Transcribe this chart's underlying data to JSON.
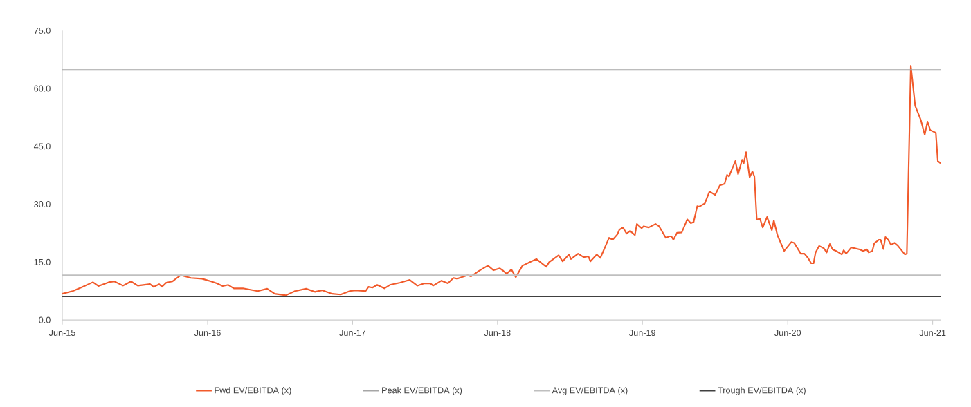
{
  "chart_data": {
    "type": "line",
    "x": [
      "2015-06-01",
      "2015-06-27",
      "2015-07-18",
      "2015-08-17",
      "2015-08-31",
      "2015-09-26",
      "2015-10-10",
      "2015-11-01",
      "2015-11-21",
      "2015-12-08",
      "2016-01-08",
      "2016-01-17",
      "2016-01-31",
      "2016-02-07",
      "2016-02-18",
      "2016-03-04",
      "2016-03-25",
      "2016-04-20",
      "2016-05-18",
      "2016-06-10",
      "2016-06-24",
      "2016-07-09",
      "2016-07-23",
      "2016-08-06",
      "2016-08-29",
      "2016-10-05",
      "2016-10-29",
      "2016-11-17",
      "2016-12-15",
      "2017-01-07",
      "2017-02-04",
      "2017-02-26",
      "2017-03-16",
      "2017-04-11",
      "2017-05-02",
      "2017-05-25",
      "2017-06-07",
      "2017-07-04",
      "2017-07-11",
      "2017-07-21",
      "2017-08-02",
      "2017-08-20",
      "2017-09-03",
      "2017-09-29",
      "2017-10-23",
      "2017-11-11",
      "2017-11-29",
      "2017-12-14",
      "2017-12-21",
      "2018-01-11",
      "2018-01-27",
      "2018-02-10",
      "2018-02-20",
      "2018-03-18",
      "2018-03-26",
      "2018-04-15",
      "2018-05-08",
      "2018-05-22",
      "2018-06-07",
      "2018-06-16",
      "2018-06-24",
      "2018-07-06",
      "2018-07-17",
      "2018-08-03",
      "2018-09-07",
      "2018-10-02",
      "2018-10-09",
      "2018-11-02",
      "2018-11-12",
      "2018-11-28",
      "2018-12-03",
      "2018-12-21",
      "2019-01-04",
      "2019-01-16",
      "2019-01-21",
      "2019-02-06",
      "2019-02-15",
      "2019-03-09",
      "2019-03-18",
      "2019-03-30",
      "2019-04-04",
      "2019-04-13",
      "2019-04-22",
      "2019-05-01",
      "2019-05-13",
      "2019-05-18",
      "2019-05-30",
      "2019-06-04",
      "2019-06-17",
      "2019-07-04",
      "2019-07-13",
      "2019-07-30",
      "2019-08-08",
      "2019-08-13",
      "2019-08-18",
      "2019-08-27",
      "2019-09-08",
      "2019-09-22",
      "2019-10-01",
      "2019-10-08",
      "2019-10-17",
      "2019-10-22",
      "2019-11-05",
      "2019-11-17",
      "2019-12-01",
      "2019-12-13",
      "2019-12-25",
      "2019-12-31",
      "2020-01-05",
      "2020-01-21",
      "2020-01-28",
      "2020-02-07",
      "2020-02-11",
      "2020-02-17",
      "2020-02-26",
      "2020-03-04",
      "2020-03-09",
      "2020-03-15",
      "2020-03-23",
      "2020-03-30",
      "2020-04-10",
      "2020-04-22",
      "2020-04-27",
      "2020-05-06",
      "2020-05-23",
      "2020-06-10",
      "2020-06-17",
      "2020-07-04",
      "2020-07-13",
      "2020-07-22",
      "2020-07-30",
      "2020-08-05",
      "2020-08-10",
      "2020-08-19",
      "2020-08-31",
      "2020-09-07",
      "2020-09-15",
      "2020-09-22",
      "2020-10-01",
      "2020-10-15",
      "2020-10-20",
      "2020-10-26",
      "2020-11-08",
      "2020-11-29",
      "2020-12-08",
      "2020-12-17",
      "2020-12-22",
      "2020-12-31",
      "2021-01-05",
      "2021-01-17",
      "2021-01-21",
      "2021-01-28",
      "2021-02-02",
      "2021-02-09",
      "2021-02-16",
      "2021-02-25",
      "2021-03-05",
      "2021-03-23",
      "2021-03-28",
      "2021-04-07",
      "2021-04-18",
      "2021-05-02",
      "2021-05-12",
      "2021-05-19",
      "2021-05-26",
      "2021-06-09",
      "2021-06-14",
      "2021-06-21"
    ],
    "series": [
      {
        "name": "Fwd EV/EBITDA (x)",
        "color": "#f15a2b",
        "values": [
          6.8,
          7.5,
          8.4,
          9.8,
          8.8,
          9.8,
          10.0,
          8.9,
          10.0,
          8.9,
          9.3,
          8.6,
          9.3,
          8.6,
          9.7,
          10.0,
          11.6,
          10.9,
          10.7,
          10.0,
          9.5,
          8.8,
          9.1,
          8.2,
          8.2,
          7.5,
          8.1,
          6.8,
          6.4,
          7.5,
          8.1,
          7.3,
          7.7,
          6.8,
          6.6,
          7.5,
          7.7,
          7.5,
          8.6,
          8.4,
          9.1,
          8.2,
          9.1,
          9.7,
          10.4,
          8.9,
          9.5,
          9.5,
          8.9,
          10.2,
          9.5,
          10.9,
          10.7,
          11.6,
          11.3,
          12.7,
          14.1,
          12.9,
          13.4,
          12.7,
          12.0,
          13.1,
          11.1,
          14.1,
          15.8,
          13.8,
          15.0,
          16.8,
          15.2,
          17.0,
          15.8,
          17.2,
          16.3,
          16.5,
          15.2,
          17.0,
          16.1,
          21.3,
          20.8,
          22.2,
          23.4,
          24.0,
          22.4,
          23.1,
          22.0,
          24.9,
          23.8,
          24.3,
          24.0,
          24.9,
          24.3,
          21.3,
          21.7,
          21.7,
          20.8,
          22.6,
          22.7,
          26.1,
          25.1,
          25.4,
          29.5,
          29.4,
          30.2,
          33.3,
          32.4,
          34.9,
          35.3,
          37.6,
          37.2,
          41.2,
          37.8,
          41.5,
          40.6,
          43.5,
          37.0,
          38.5,
          37.2,
          26.0,
          26.3,
          24.0,
          26.7,
          23.3,
          25.8,
          22.0,
          17.9,
          20.2,
          20.0,
          17.2,
          17.2,
          16.1,
          14.7,
          14.7,
          17.5,
          19.2,
          18.6,
          17.5,
          19.7,
          18.3,
          17.9,
          17.0,
          18.1,
          17.2,
          18.8,
          18.3,
          17.9,
          18.3,
          17.5,
          17.9,
          19.9,
          20.8,
          20.8,
          18.4,
          21.5,
          20.8,
          19.5,
          20.0,
          19.3,
          17.0,
          17.2,
          65.9,
          55.5,
          51.9,
          48.0,
          51.4,
          49.2,
          48.5,
          41.2,
          40.6
        ]
      }
    ],
    "ref_lines": [
      {
        "axis": "y",
        "value": 64.8,
        "label": "Peak EV/EBITDA (x)",
        "color": "#a6a6a6"
      },
      {
        "axis": "y",
        "value": 11.6,
        "label": "Avg EV/EBITDA (x)",
        "color": "#bfbfbf"
      },
      {
        "axis": "y",
        "value": 6.1,
        "label": "Trough EV/EBITDA (x)",
        "color": "#404040"
      }
    ],
    "xlim": [
      "2015-06-01",
      "2021-06-22"
    ],
    "xticks": [
      {
        "value": "2015-06-01",
        "label": "Jun-15"
      },
      {
        "value": "2016-06-01",
        "label": "Jun-16"
      },
      {
        "value": "2017-06-01",
        "label": "Jun-17"
      },
      {
        "value": "2018-06-01",
        "label": "Jun-18"
      },
      {
        "value": "2019-06-01",
        "label": "Jun-19"
      },
      {
        "value": "2020-06-01",
        "label": "Jun-20"
      },
      {
        "value": "2021-06-01",
        "label": "Jun-21"
      }
    ],
    "ylim": [
      0,
      75
    ],
    "yticks": [
      {
        "value": 0,
        "label": "0.0"
      },
      {
        "value": 15,
        "label": "15.0"
      },
      {
        "value": 30,
        "label": "30.0"
      },
      {
        "value": 45,
        "label": "45.0"
      },
      {
        "value": 60,
        "label": "60.0"
      },
      {
        "value": 75,
        "label": "75.0"
      }
    ],
    "legend": "bottom",
    "line_style": "solid"
  }
}
